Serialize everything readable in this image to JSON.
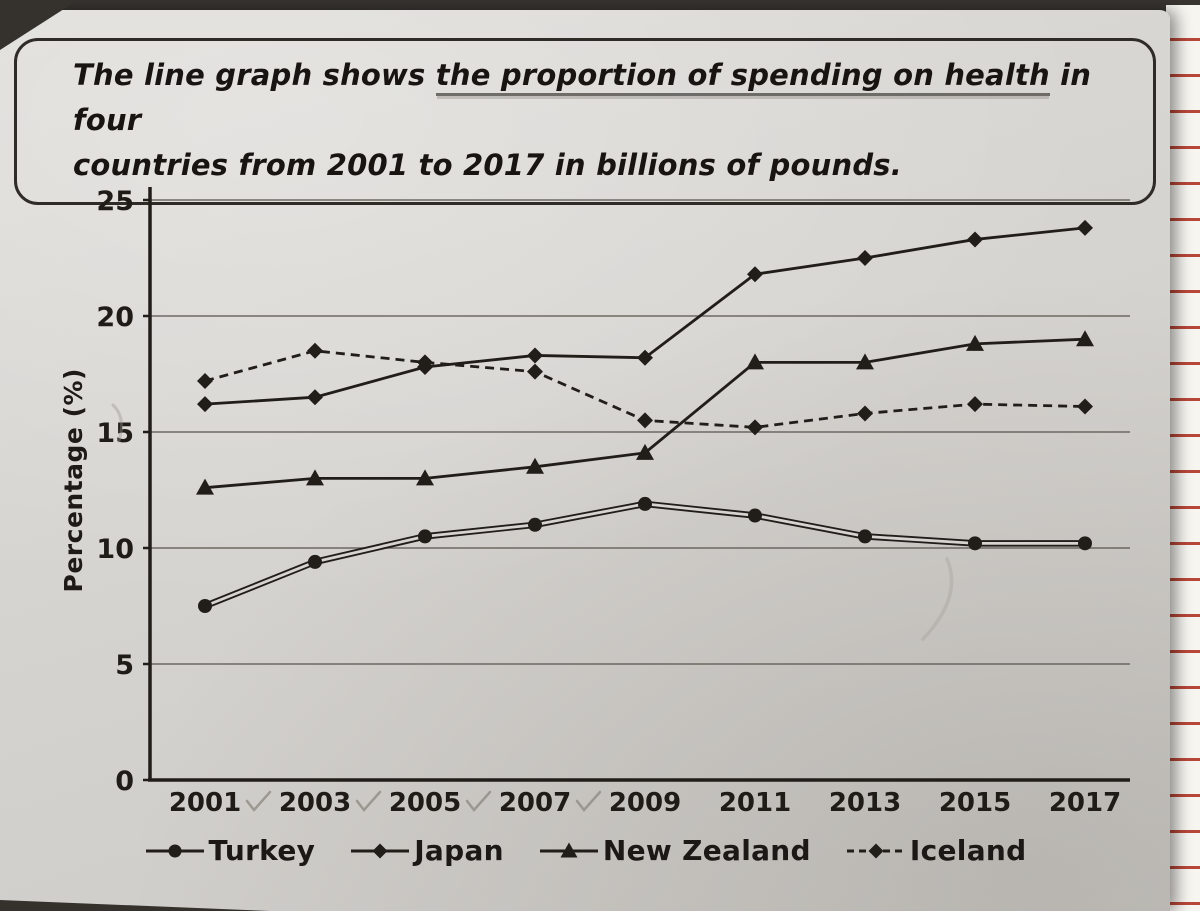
{
  "title": {
    "line1_pre": "The line graph shows ",
    "line1_underlined": "the proportion of spending on health",
    "line1_post": " in four",
    "line2": "countries from 2001 to 2017 in billions of pounds."
  },
  "chart_data": {
    "type": "line",
    "title": "The line graph shows the proportion of spending on health in four countries from 2001 to 2017 in billions of pounds.",
    "xlabel": "",
    "ylabel": "Percentage (%)",
    "ylim": [
      0,
      25
    ],
    "yticks": [
      0,
      5,
      10,
      15,
      20,
      25
    ],
    "grid": "horizontal",
    "legend_position": "bottom",
    "categories": [
      "2001",
      "2003",
      "2005",
      "2007",
      "2009",
      "2011",
      "2013",
      "2015",
      "2017"
    ],
    "series": [
      {
        "name": "Turkey",
        "marker": "circle",
        "line_style": "double-solid",
        "values": [
          7.5,
          9.4,
          10.5,
          11.0,
          11.9,
          11.4,
          10.5,
          10.2,
          10.2
        ]
      },
      {
        "name": "Japan",
        "marker": "diamond",
        "line_style": "solid",
        "values": [
          16.2,
          16.5,
          17.8,
          18.3,
          18.2,
          21.8,
          22.5,
          23.3,
          23.8
        ]
      },
      {
        "name": "New Zealand",
        "marker": "triangle",
        "line_style": "solid",
        "values": [
          12.6,
          13.0,
          13.0,
          13.5,
          14.1,
          18.0,
          18.0,
          18.8,
          19.0
        ]
      },
      {
        "name": "Iceland",
        "marker": "diamond",
        "line_style": "dashed",
        "values": [
          17.2,
          18.5,
          18.0,
          17.6,
          15.5,
          15.2,
          15.8,
          16.2,
          16.1
        ]
      }
    ],
    "ink_color": "#211e1a",
    "paper_color": "#d6d4d0",
    "grid_color": "#5b5751"
  }
}
